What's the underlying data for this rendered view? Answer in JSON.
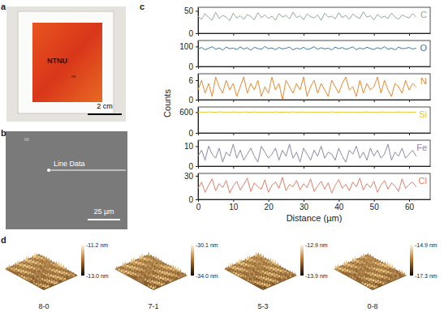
{
  "chart_data": [
    {
      "type": "line",
      "title": "C",
      "color": "#8fae93",
      "tick_labels": "y",
      "xlim": [
        0,
        66
      ],
      "xticks": [
        0,
        10,
        20,
        30,
        40,
        50,
        60
      ],
      "ylim": [
        0,
        58
      ],
      "yticks": [
        0,
        50
      ],
      "x": [
        0,
        1,
        2,
        3,
        4,
        5,
        6,
        7,
        8,
        9,
        10,
        11,
        12,
        13,
        14,
        15,
        16,
        17,
        18,
        19,
        20,
        21,
        22,
        23,
        24,
        25,
        26,
        27,
        28,
        29,
        30,
        31,
        32,
        33,
        34,
        35,
        36,
        37,
        38,
        39,
        40,
        41,
        42,
        43,
        44,
        45,
        46,
        47,
        48,
        49,
        50,
        51,
        52,
        53,
        54,
        55,
        56,
        57,
        58,
        59,
        60,
        61,
        62
      ],
      "values": [
        38,
        31,
        44,
        35,
        29,
        47,
        33,
        40,
        36,
        28,
        45,
        34,
        39,
        31,
        42,
        37,
        30,
        46,
        35,
        41,
        33,
        38,
        29,
        44,
        36,
        40,
        32,
        47,
        35,
        39,
        30,
        43,
        37,
        34,
        41,
        29,
        45,
        36,
        38,
        32,
        46,
        35,
        40,
        31,
        43,
        37,
        33,
        48,
        36,
        39,
        30,
        42,
        35,
        38,
        33,
        45,
        36,
        31,
        41,
        37,
        34,
        44,
        36
      ]
    },
    {
      "type": "line",
      "title": "O",
      "color": "#3d7aa6",
      "tick_labels": "y",
      "xlim": [
        0,
        66
      ],
      "xticks": [
        0,
        10,
        20,
        30,
        40,
        50,
        60
      ],
      "ylim": [
        0,
        130
      ],
      "yticks": [
        0,
        100
      ],
      "x": [
        0,
        1,
        2,
        3,
        4,
        5,
        6,
        7,
        8,
        9,
        10,
        11,
        12,
        13,
        14,
        15,
        16,
        17,
        18,
        19,
        20,
        21,
        22,
        23,
        24,
        25,
        26,
        27,
        28,
        29,
        30,
        31,
        32,
        33,
        34,
        35,
        36,
        37,
        38,
        39,
        40,
        41,
        42,
        43,
        44,
        45,
        46,
        47,
        48,
        49,
        50,
        51,
        52,
        53,
        54,
        55,
        56,
        57,
        58,
        59,
        60,
        61,
        62
      ],
      "values": [
        88,
        95,
        84,
        91,
        99,
        86,
        93,
        82,
        97,
        89,
        92,
        85,
        98,
        87,
        94,
        81,
        96,
        90,
        86,
        100,
        89,
        93,
        84,
        95,
        88,
        91,
        97,
        83,
        92,
        87,
        96,
        85,
        90,
        99,
        86,
        94,
        88,
        92,
        83,
        97,
        89,
        95,
        86,
        91,
        98,
        84,
        93,
        87,
        96,
        90,
        85,
        94,
        88,
        99,
        86,
        92,
        83,
        97,
        89,
        91,
        95,
        87,
        92
      ]
    },
    {
      "type": "line",
      "title": "N",
      "color": "#e8892e",
      "tick_labels": "y",
      "xlim": [
        0,
        66
      ],
      "xticks": [
        0,
        10,
        20,
        30,
        40,
        50,
        60
      ],
      "ylim": [
        0,
        8
      ],
      "yticks": [
        0,
        6
      ],
      "x": [
        0,
        1,
        2,
        3,
        4,
        5,
        6,
        7,
        8,
        9,
        10,
        11,
        12,
        13,
        14,
        15,
        16,
        17,
        18,
        19,
        20,
        21,
        22,
        23,
        24,
        25,
        26,
        27,
        28,
        29,
        30,
        31,
        32,
        33,
        34,
        35,
        36,
        37,
        38,
        39,
        40,
        41,
        42,
        43,
        44,
        45,
        46,
        47,
        48,
        49,
        50,
        51,
        52,
        53,
        54,
        55,
        56,
        57,
        58,
        59,
        60,
        61,
        62
      ],
      "values": [
        3,
        6,
        2,
        5,
        1,
        7,
        4,
        2,
        6,
        3,
        5,
        1,
        4,
        7,
        2,
        5,
        3,
        6,
        1,
        4,
        2,
        7,
        3,
        5,
        0,
        6,
        4,
        2,
        5,
        3,
        7,
        1,
        4,
        6,
        2,
        5,
        3,
        1,
        6,
        4,
        2,
        5,
        7,
        3,
        4,
        1,
        6,
        2,
        5,
        3,
        4,
        7,
        2,
        6,
        3,
        1,
        5,
        4,
        2,
        6,
        3,
        5,
        4
      ]
    },
    {
      "type": "line",
      "title": "Si",
      "color": "#e6c92f",
      "tick_labels": "y",
      "xlim": [
        0,
        66
      ],
      "xticks": [
        0,
        10,
        20,
        30,
        40,
        50,
        60
      ],
      "ylim": [
        0,
        750
      ],
      "yticks": [
        0,
        600
      ],
      "x": [
        0,
        1,
        2,
        3,
        4,
        5,
        6,
        7,
        8,
        9,
        10,
        11,
        12,
        13,
        14,
        15,
        16,
        17,
        18,
        19,
        20,
        21,
        22,
        23,
        24,
        25,
        26,
        27,
        28,
        29,
        30,
        31,
        32,
        33,
        34,
        35,
        36,
        37,
        38,
        39,
        40,
        41,
        42,
        43,
        44,
        45,
        46,
        47,
        48,
        49,
        50,
        51,
        52,
        53,
        54,
        55,
        56,
        57,
        58,
        59,
        60,
        61,
        62
      ],
      "values": [
        598,
        604,
        592,
        607,
        600,
        595,
        610,
        597,
        603,
        591,
        606,
        599,
        594,
        605,
        601,
        596,
        608,
        593,
        602,
        598,
        604,
        590,
        607,
        599,
        595,
        603,
        597,
        609,
        594,
        601,
        605,
        596,
        600,
        592,
        606,
        598,
        603,
        595,
        608,
        599,
        593,
        604,
        600,
        597,
        606,
        591,
        602,
        598,
        605,
        596,
        601,
        594,
        607,
        599,
        603,
        592,
        598,
        605,
        597,
        602,
        600,
        595,
        604
      ]
    },
    {
      "type": "line",
      "title": "Fe",
      "color": "#8d87aa",
      "tick_labels": "y",
      "xlim": [
        0,
        66
      ],
      "xticks": [
        0,
        10,
        20,
        30,
        40,
        50,
        60
      ],
      "ylim": [
        0,
        13
      ],
      "yticks": [
        0,
        10
      ],
      "x": [
        0,
        1,
        2,
        3,
        4,
        5,
        6,
        7,
        8,
        9,
        10,
        11,
        12,
        13,
        14,
        15,
        16,
        17,
        18,
        19,
        20,
        21,
        22,
        23,
        24,
        25,
        26,
        27,
        28,
        29,
        30,
        31,
        32,
        33,
        34,
        35,
        36,
        37,
        38,
        39,
        40,
        41,
        42,
        43,
        44,
        45,
        46,
        47,
        48,
        49,
        50,
        51,
        52,
        53,
        54,
        55,
        56,
        57,
        58,
        59,
        60,
        61,
        62
      ],
      "values": [
        5,
        8,
        3,
        10,
        6,
        4,
        9,
        2,
        7,
        5,
        11,
        4,
        8,
        3,
        6,
        9,
        5,
        2,
        10,
        7,
        4,
        6,
        9,
        3,
        8,
        5,
        11,
        4,
        7,
        2,
        9,
        6,
        3,
        8,
        5,
        10,
        4,
        7,
        6,
        3,
        9,
        5,
        2,
        8,
        6,
        10,
        4,
        7,
        3,
        9,
        5,
        8,
        4,
        6,
        11,
        3,
        7,
        5,
        9,
        4,
        6,
        8,
        5
      ]
    },
    {
      "type": "line",
      "title": "Cl",
      "color": "#e07f6a",
      "xlabel": "Distance (µm)",
      "xlim": [
        0,
        66
      ],
      "xticks": [
        0,
        10,
        20,
        30,
        40,
        50,
        60
      ],
      "ylim": [
        0,
        33
      ],
      "yticks": [
        0,
        30
      ],
      "x": [
        0,
        1,
        2,
        3,
        4,
        5,
        6,
        7,
        8,
        9,
        10,
        11,
        12,
        13,
        14,
        15,
        16,
        17,
        18,
        19,
        20,
        21,
        22,
        23,
        24,
        25,
        26,
        27,
        28,
        29,
        30,
        31,
        32,
        33,
        34,
        35,
        36,
        37,
        38,
        39,
        40,
        41,
        42,
        43,
        44,
        45,
        46,
        47,
        48,
        49,
        50,
        51,
        52,
        53,
        54,
        55,
        56,
        57,
        58,
        59,
        60,
        61,
        62
      ],
      "values": [
        14,
        22,
        9,
        18,
        26,
        11,
        20,
        15,
        24,
        8,
        17,
        23,
        12,
        19,
        27,
        10,
        21,
        16,
        13,
        25,
        9,
        18,
        22,
        14,
        28,
        11,
        19,
        16,
        24,
        12,
        20,
        15,
        26,
        10,
        17,
        23,
        13,
        21,
        8,
        18,
        25,
        14,
        19,
        11,
        22,
        16,
        27,
        12,
        20,
        15,
        23,
        9,
        18,
        24,
        13,
        21,
        17,
        10,
        26,
        14,
        19,
        22,
        16
      ]
    }
  ],
  "panels": {
    "a": {
      "label": "a",
      "texts": [
        "NTNU",
        "ns"
      ],
      "scale_bar": "2 cm"
    },
    "b": {
      "label": "b",
      "line_label": "Line Data",
      "scale_bar": "25 µm"
    },
    "c": {
      "label": "c",
      "ylabel": "Counts"
    },
    "d": {
      "label": "d",
      "images": [
        {
          "name": "8-0",
          "clim": [
            -13.0,
            -11.2
          ],
          "cticks": [
            {
              "value": -11.2,
              "label": "-11.2 nm"
            },
            {
              "value": -13.0,
              "label": "-13.0 nm"
            }
          ]
        },
        {
          "name": "7-1",
          "clim": [
            -34.0,
            -30.1
          ],
          "cticks": [
            {
              "value": -30.1,
              "label": "-30.1 nm"
            },
            {
              "value": -34.0,
              "label": "-34.0 nm"
            }
          ]
        },
        {
          "name": "5-3",
          "clim": [
            -13.9,
            -12.9
          ],
          "cticks": [
            {
              "value": -12.9,
              "label": "-12.9 nm"
            },
            {
              "value": -13.9,
              "label": "-13.9 nm"
            }
          ]
        },
        {
          "name": "0-8",
          "clim": [
            -17.3,
            -14.9
          ],
          "cticks": [
            {
              "value": -14.9,
              "label": "-14.9 nm"
            },
            {
              "value": -17.3,
              "label": "-17.3 nm"
            }
          ]
        }
      ]
    }
  }
}
